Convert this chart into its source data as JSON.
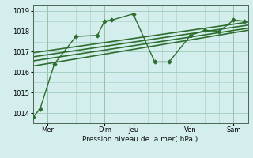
{
  "title": "",
  "xlabel": "Pression niveau de la mer( hPa )",
  "ylim": [
    1013.5,
    1019.3
  ],
  "xlim": [
    0,
    120
  ],
  "yticks": [
    1014,
    1015,
    1016,
    1017,
    1018,
    1019
  ],
  "xtick_positions": [
    8,
    40,
    56,
    88,
    112
  ],
  "xtick_labels": [
    "Mer",
    "Dim",
    "Jeu",
    "Ven",
    "Sam"
  ],
  "vline_positions": [
    8,
    40,
    56,
    88,
    112
  ],
  "bg_color": "#d4eeee",
  "grid_color": "#a0ccbb",
  "line_color": "#2d6e2d",
  "zigzag": {
    "x": [
      0,
      4,
      12,
      24,
      36,
      40,
      44,
      56,
      68,
      76,
      88,
      96,
      104,
      112,
      118
    ],
    "y": [
      1013.8,
      1014.2,
      1016.4,
      1017.75,
      1017.8,
      1018.5,
      1018.55,
      1018.85,
      1016.5,
      1016.5,
      1017.8,
      1018.05,
      1018.0,
      1018.55,
      1018.5
    ],
    "marker": "D",
    "markersize": 2.8,
    "lw": 1.0
  },
  "trend_lines": [
    {
      "x": [
        0,
        120
      ],
      "y": [
        1016.3,
        1018.05
      ]
    },
    {
      "x": [
        0,
        120
      ],
      "y": [
        1016.55,
        1018.15
      ]
    },
    {
      "x": [
        0,
        120
      ],
      "y": [
        1016.75,
        1018.3
      ]
    },
    {
      "x": [
        0,
        120
      ],
      "y": [
        1016.95,
        1018.45
      ]
    }
  ],
  "trend_lw": 1.2
}
